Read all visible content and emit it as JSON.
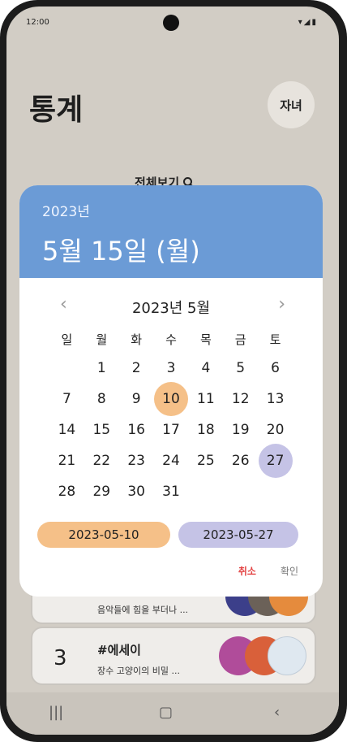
{
  "status": {
    "time": "12:00",
    "icons": "▾◢▮"
  },
  "page": {
    "title": "통계",
    "avatar_label": "자녀",
    "view_all_label": "전체보기"
  },
  "cards": [
    {
      "rank": "",
      "tag": "",
      "desc": "음악들에 힘을 부더나 ..."
    },
    {
      "rank": "3",
      "tag": "#에세이",
      "desc": "장수 고양이의 비밀 ..."
    }
  ],
  "dialog": {
    "year": "2023년",
    "selected": "5월 15일 (월)",
    "month_label": "2023년 5월",
    "prev": "‹",
    "next": "›",
    "weekdays": [
      "일",
      "월",
      "화",
      "수",
      "목",
      "금",
      "토"
    ],
    "weeks": [
      [
        "",
        "1",
        "2",
        "3",
        "4",
        "5",
        "6"
      ],
      [
        "7",
        "8",
        "9",
        "10",
        "11",
        "12",
        "13"
      ],
      [
        "14",
        "15",
        "16",
        "17",
        "18",
        "19",
        "20"
      ],
      [
        "21",
        "22",
        "23",
        "24",
        "25",
        "26",
        "27"
      ],
      [
        "28",
        "29",
        "30",
        "31",
        "",
        "",
        ""
      ]
    ],
    "range_start_day": "10",
    "range_end_day": "27",
    "range_start": "2023-05-10",
    "range_end": "2023-05-27",
    "cancel_label": "취소",
    "confirm_label": "확인"
  },
  "nav": {
    "recents": "|||",
    "home": "▢",
    "back": "‹"
  },
  "colors": {
    "header": "#6b9bd6",
    "start": "#f5c088",
    "end": "#c5c3e6",
    "cancel": "#e34343"
  }
}
